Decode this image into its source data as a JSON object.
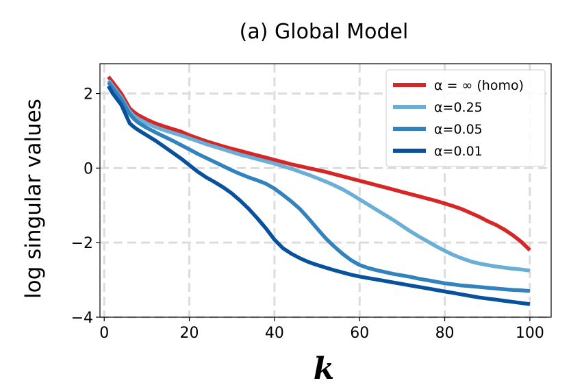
{
  "chart_data": {
    "type": "line",
    "title": "(a) Global Model",
    "xlabel": "k",
    "ylabel": "log singular values",
    "xlim": [
      -1,
      105
    ],
    "ylim": [
      -4,
      2.8
    ],
    "xticks": [
      0,
      20,
      40,
      60,
      80,
      100
    ],
    "yticks": [
      -4,
      -2,
      0,
      2
    ],
    "xtick_labels": [
      "0",
      "20",
      "40",
      "60",
      "80",
      "100"
    ],
    "ytick_labels": [
      "−4",
      "−2",
      "0",
      "2"
    ],
    "grid": true,
    "legend_position": "top-right",
    "series": [
      {
        "name": "α = ∞ (homo)",
        "color": "#d62728",
        "x": [
          1,
          2,
          3,
          4,
          5,
          6,
          7,
          8,
          10,
          12,
          14,
          16,
          18,
          20,
          22,
          24,
          26,
          28,
          30,
          32,
          34,
          36,
          38,
          40,
          42,
          44,
          46,
          48,
          50,
          52,
          54,
          56,
          58,
          60,
          62,
          64,
          66,
          68,
          70,
          72,
          74,
          76,
          78,
          80,
          82,
          84,
          86,
          88,
          90,
          92,
          94,
          96,
          98,
          100
        ],
        "values": [
          2.45,
          2.3,
          2.15,
          2.0,
          1.8,
          1.6,
          1.5,
          1.42,
          1.3,
          1.2,
          1.12,
          1.05,
          0.98,
          0.88,
          0.8,
          0.72,
          0.65,
          0.58,
          0.52,
          0.46,
          0.4,
          0.34,
          0.28,
          0.22,
          0.16,
          0.1,
          0.05,
          0.0,
          -0.05,
          -0.1,
          -0.16,
          -0.22,
          -0.28,
          -0.34,
          -0.4,
          -0.46,
          -0.52,
          -0.58,
          -0.64,
          -0.7,
          -0.76,
          -0.82,
          -0.88,
          -0.95,
          -1.02,
          -1.1,
          -1.2,
          -1.3,
          -1.42,
          -1.52,
          -1.65,
          -1.8,
          -1.98,
          -2.2
        ]
      },
      {
        "name": "α=0.25",
        "color": "#6baed6",
        "x": [
          1,
          2,
          3,
          4,
          5,
          6,
          7,
          8,
          10,
          12,
          14,
          16,
          18,
          20,
          22,
          24,
          26,
          28,
          30,
          32,
          34,
          36,
          38,
          40,
          42,
          44,
          46,
          48,
          50,
          52,
          54,
          56,
          58,
          60,
          62,
          64,
          66,
          68,
          70,
          72,
          74,
          76,
          78,
          80,
          82,
          84,
          86,
          88,
          90,
          92,
          94,
          96,
          98,
          100
        ],
        "values": [
          2.35,
          2.2,
          2.05,
          1.9,
          1.7,
          1.52,
          1.4,
          1.32,
          1.2,
          1.1,
          1.02,
          0.95,
          0.88,
          0.8,
          0.72,
          0.64,
          0.57,
          0.5,
          0.43,
          0.36,
          0.3,
          0.24,
          0.18,
          0.12,
          0.05,
          -0.02,
          -0.1,
          -0.18,
          -0.27,
          -0.36,
          -0.46,
          -0.57,
          -0.7,
          -0.84,
          -0.98,
          -1.12,
          -1.26,
          -1.4,
          -1.55,
          -1.7,
          -1.84,
          -1.97,
          -2.1,
          -2.22,
          -2.33,
          -2.42,
          -2.5,
          -2.56,
          -2.6,
          -2.64,
          -2.67,
          -2.7,
          -2.72,
          -2.75
        ]
      },
      {
        "name": "α=0.05",
        "color": "#3182bd",
        "x": [
          1,
          2,
          3,
          4,
          5,
          6,
          7,
          8,
          10,
          12,
          14,
          16,
          18,
          20,
          22,
          24,
          26,
          28,
          30,
          32,
          34,
          36,
          38,
          40,
          42,
          44,
          46,
          48,
          50,
          52,
          54,
          56,
          58,
          60,
          62,
          64,
          66,
          68,
          70,
          72,
          74,
          76,
          78,
          80,
          82,
          84,
          86,
          88,
          90,
          92,
          94,
          96,
          98,
          100
        ],
        "values": [
          2.3,
          2.15,
          2.0,
          1.85,
          1.65,
          1.45,
          1.32,
          1.22,
          1.08,
          0.96,
          0.85,
          0.74,
          0.62,
          0.5,
          0.38,
          0.27,
          0.16,
          0.05,
          -0.06,
          -0.16,
          -0.25,
          -0.33,
          -0.42,
          -0.55,
          -0.72,
          -0.9,
          -1.1,
          -1.35,
          -1.62,
          -1.88,
          -2.1,
          -2.3,
          -2.47,
          -2.6,
          -2.68,
          -2.74,
          -2.79,
          -2.84,
          -2.88,
          -2.92,
          -2.97,
          -3.01,
          -3.05,
          -3.09,
          -3.12,
          -3.15,
          -3.17,
          -3.19,
          -3.21,
          -3.23,
          -3.25,
          -3.27,
          -3.28,
          -3.3
        ]
      },
      {
        "name": "α=0.01",
        "color": "#08519c",
        "x": [
          1,
          2,
          3,
          4,
          5,
          6,
          7,
          8,
          10,
          12,
          14,
          16,
          18,
          20,
          22,
          24,
          26,
          28,
          30,
          32,
          34,
          36,
          38,
          40,
          42,
          44,
          46,
          48,
          50,
          52,
          54,
          56,
          58,
          60,
          62,
          64,
          66,
          68,
          70,
          72,
          74,
          76,
          78,
          80,
          82,
          84,
          86,
          88,
          90,
          92,
          94,
          96,
          98,
          100
        ],
        "values": [
          2.2,
          2.0,
          1.85,
          1.7,
          1.45,
          1.2,
          1.1,
          1.02,
          0.88,
          0.74,
          0.58,
          0.42,
          0.26,
          0.08,
          -0.1,
          -0.25,
          -0.38,
          -0.52,
          -0.68,
          -0.88,
          -1.1,
          -1.35,
          -1.62,
          -1.92,
          -2.15,
          -2.3,
          -2.42,
          -2.52,
          -2.6,
          -2.67,
          -2.74,
          -2.8,
          -2.86,
          -2.91,
          -2.95,
          -2.99,
          -3.03,
          -3.07,
          -3.11,
          -3.15,
          -3.19,
          -3.23,
          -3.27,
          -3.31,
          -3.35,
          -3.39,
          -3.43,
          -3.47,
          -3.5,
          -3.53,
          -3.56,
          -3.59,
          -3.62,
          -3.65
        ]
      }
    ]
  }
}
